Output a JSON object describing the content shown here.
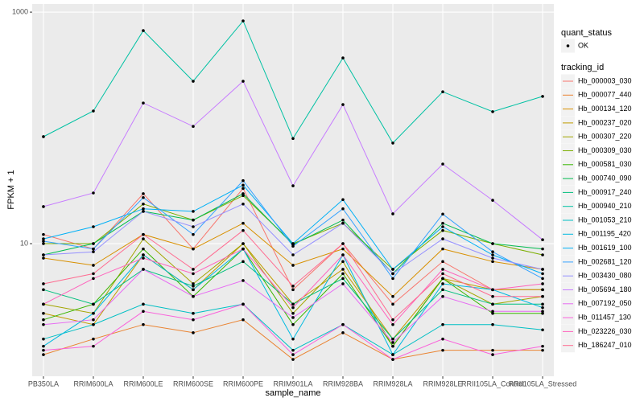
{
  "chart_data": {
    "type": "line",
    "x_label": "sample_name",
    "y_label": "FPKM + 1",
    "log_scale": true,
    "grid": true,
    "ylim": [
      0.715,
      1175
    ],
    "yticks": [
      10,
      1000
    ],
    "categories": [
      "PB350LA",
      "RRIM600LA",
      "RRIM600LE",
      "RRIM600SE",
      "RRIM600PE",
      "RRIM901LA",
      "RRIM928BA",
      "RRIM928LA",
      "RRIM928LE",
      "RRII105LA_Control",
      "RRII105LA_Stressed"
    ],
    "point_legend_title": "quant_status",
    "point_legend_label": "OK",
    "point_color": "#000000",
    "legend_title": "tracking_id",
    "series": [
      {
        "name": "Hb_000003_030",
        "color": "#F8766D",
        "values": [
          12,
          9,
          27,
          9,
          30,
          4,
          10,
          3,
          7,
          4,
          4
        ]
      },
      {
        "name": "Hb_000077_440",
        "color": "#EA8331",
        "values": [
          1.1,
          1.5,
          2,
          1.7,
          2.2,
          1,
          1.7,
          1,
          1.2,
          1.2,
          1.2
        ]
      },
      {
        "name": "Hb_000134_120",
        "color": "#D89000",
        "values": [
          7.5,
          6.5,
          12,
          9,
          15,
          6.5,
          9,
          3.5,
          9,
          7,
          6
        ]
      },
      {
        "name": "Hb_000237_020",
        "color": "#C09B00",
        "values": [
          2.5,
          2,
          8,
          4,
          10,
          3,
          6,
          1.5,
          5,
          4,
          4
        ]
      },
      {
        "name": "Hb_000307_220",
        "color": "#A3A500",
        "values": [
          3,
          2.5,
          11,
          4.5,
          10,
          2.5,
          7,
          1.3,
          5,
          3,
          3.5
        ]
      },
      {
        "name": "Hb_000309_030",
        "color": "#7CAE00",
        "values": [
          10,
          10,
          22,
          16,
          26,
          10,
          15,
          6,
          13,
          10,
          8
        ]
      },
      {
        "name": "Hb_000581_030",
        "color": "#39B600",
        "values": [
          2.2,
          3,
          9,
          3.5,
          9,
          2,
          5.5,
          1.3,
          5,
          2.5,
          2.5
        ]
      },
      {
        "name": "Hb_000740_090",
        "color": "#00BB4E",
        "values": [
          8,
          10,
          19,
          16,
          27,
          9.8,
          16,
          5.5,
          15,
          10,
          9
        ]
      },
      {
        "name": "Hb_000917_240",
        "color": "#00BF7D",
        "values": [
          4,
          3,
          6,
          4.3,
          7,
          3,
          5,
          1.5,
          4,
          3,
          3
        ]
      },
      {
        "name": "Hb_000940_210",
        "color": "#00C1A3",
        "values": [
          84,
          140,
          692,
          253,
          839,
          81,
          402,
          74,
          205,
          138,
          187
        ]
      },
      {
        "name": "Hb_001053_210",
        "color": "#00BFC4",
        "values": [
          1.5,
          2,
          3,
          2.5,
          3,
          1.2,
          2,
          1.1,
          2,
          2,
          1.8
        ]
      },
      {
        "name": "Hb_001195_420",
        "color": "#00BAE0",
        "values": [
          1.3,
          2.5,
          8,
          4,
          9,
          1.5,
          8,
          1.1,
          4.5,
          4,
          2.8
        ]
      },
      {
        "name": "Hb_001619_100",
        "color": "#00B0F6",
        "values": [
          11,
          14,
          20,
          19,
          32,
          10,
          24,
          6,
          14,
          8,
          5.5
        ]
      },
      {
        "name": "Hb_002681_120",
        "color": "#35A2FF",
        "values": [
          10.5,
          9,
          25,
          12,
          35,
          9.5,
          20,
          5,
          18,
          8.5,
          5
        ]
      },
      {
        "name": "Hb_003430_080",
        "color": "#9590FF",
        "values": [
          8,
          8.5,
          19,
          14,
          22,
          8,
          15,
          5.5,
          11,
          7.5,
          6
        ]
      },
      {
        "name": "Hb_005694_180",
        "color": "#C77CFF",
        "values": [
          20.9,
          27.4,
          164,
          103,
          253,
          31.6,
          159,
          18.1,
          48.7,
          23.7,
          10.8
        ]
      },
      {
        "name": "Hb_007192_050",
        "color": "#E76BF3",
        "values": [
          2,
          2.2,
          6,
          3.5,
          4.8,
          2.3,
          4.5,
          1.4,
          3.5,
          2.6,
          2.6
        ]
      },
      {
        "name": "Hb_011457_130",
        "color": "#FA62DB",
        "values": [
          1.2,
          1.3,
          2.6,
          2.2,
          3,
          1.1,
          2,
          1,
          1.5,
          1.1,
          1.3
        ]
      },
      {
        "name": "Hb_023226_030",
        "color": "#FF62BC",
        "values": [
          3,
          5,
          7.5,
          5.5,
          9,
          2.8,
          8,
          2,
          6,
          4,
          4.5
        ]
      },
      {
        "name": "Hb_186247_010",
        "color": "#FF6C91",
        "values": [
          4.5,
          5.5,
          12,
          6,
          13,
          4.3,
          10,
          2.2,
          5.5,
          3.5,
          3.5
        ]
      }
    ]
  }
}
